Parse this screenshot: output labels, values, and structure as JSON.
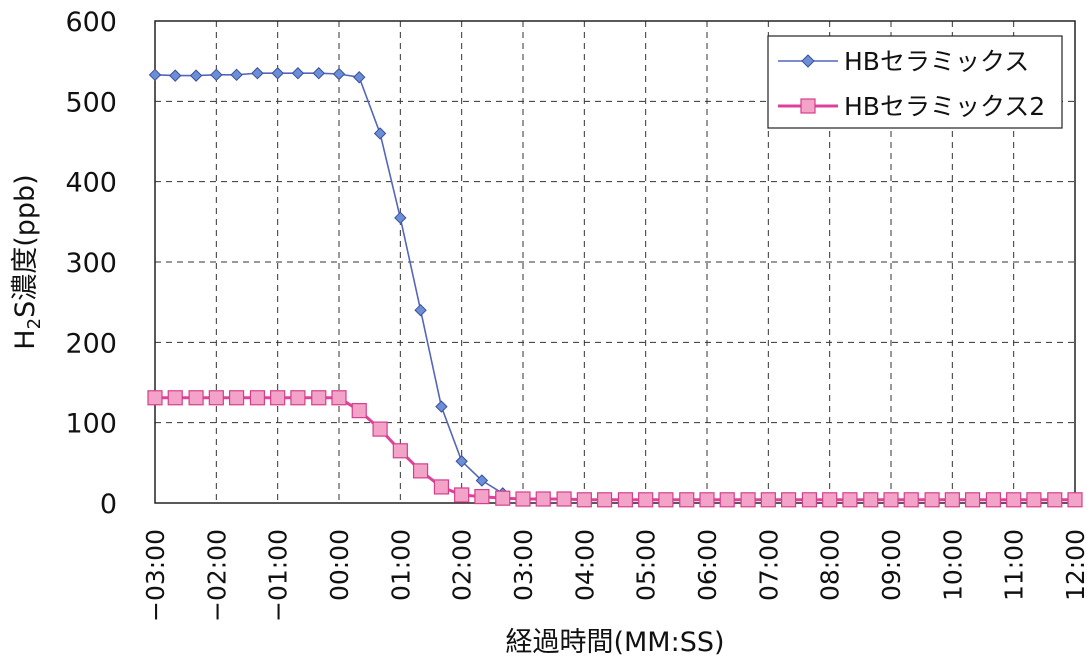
{
  "chart_data": {
    "type": "line",
    "title": "",
    "xlabel": "経過時間(MM:SS)",
    "ylabel": "H2S濃度(ppb)",
    "ylabel_parts": {
      "pre": "H",
      "sub": "2",
      "post": "S濃度(ppb)"
    },
    "ylim": [
      0,
      600
    ],
    "yticks": [
      0,
      100,
      200,
      300,
      400,
      500,
      600
    ],
    "xlim": [
      -3.0,
      12.0
    ],
    "xticks": [
      "−03:00",
      "−02:00",
      "−01:00",
      "00:00",
      "01:00",
      "02:00",
      "03:00",
      "04:00",
      "05:00",
      "06:00",
      "07:00",
      "08:00",
      "09:00",
      "10:00",
      "11:00",
      "12:00"
    ],
    "grid": "dashed",
    "legend_position": "top-right",
    "series": [
      {
        "name": "HBセラミックス",
        "color": "#5566bb",
        "marker": "diamond",
        "x": [
          -3.0,
          -2.67,
          -2.33,
          -2.0,
          -1.67,
          -1.33,
          -1.0,
          -0.67,
          -0.33,
          0.0,
          0.33,
          0.67,
          1.0,
          1.33,
          1.67,
          2.0,
          2.33,
          2.67
        ],
        "y": [
          533,
          532,
          532,
          533,
          533,
          535,
          535,
          535,
          535,
          534,
          530,
          460,
          355,
          240,
          120,
          52,
          28,
          12
        ]
      },
      {
        "name": "HBセラミックス2",
        "color": "#e0409a",
        "marker": "square",
        "x": [
          -3.0,
          -2.67,
          -2.33,
          -2.0,
          -1.67,
          -1.33,
          -1.0,
          -0.67,
          -0.33,
          0.0,
          0.33,
          0.67,
          1.0,
          1.33,
          1.67,
          2.0,
          2.33,
          2.67,
          3.0,
          3.33,
          3.67,
          4.0,
          4.33,
          4.67,
          5.0,
          5.33,
          5.67,
          6.0,
          6.33,
          6.67,
          7.0,
          7.33,
          7.67,
          8.0,
          8.33,
          8.67,
          9.0,
          9.33,
          9.67,
          10.0,
          10.33,
          10.67,
          11.0,
          11.33,
          11.67,
          12.0
        ],
        "y": [
          131,
          131,
          131,
          131,
          131,
          131,
          131,
          131,
          131,
          131,
          115,
          92,
          65,
          40,
          20,
          10,
          8,
          6,
          5,
          5,
          5,
          4,
          4,
          4,
          4,
          4,
          4,
          4,
          4,
          4,
          4,
          4,
          4,
          4,
          4,
          4,
          4,
          4,
          4,
          4,
          4,
          4,
          4,
          4,
          4,
          4
        ]
      }
    ]
  }
}
